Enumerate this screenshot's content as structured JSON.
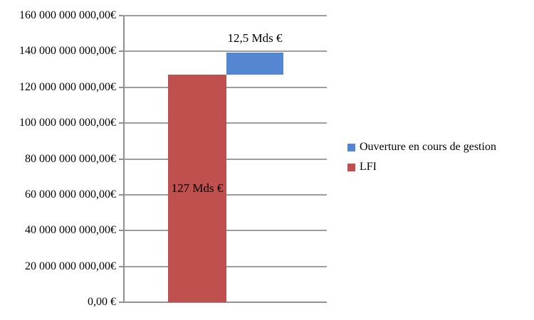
{
  "chart_data": {
    "type": "bar",
    "subtype": "stacked-waterfall",
    "title": "",
    "xlabel": "",
    "ylabel": "",
    "categories": [
      "LFI",
      "Ouverture en cours de gestion"
    ],
    "series": [
      {
        "name": "LFI",
        "value": 127000000000,
        "data_label": "127 Mds €",
        "color": "#C0504D",
        "label_position": "center"
      },
      {
        "name": "Ouverture en cours de gestion",
        "value": 12500000000,
        "data_label": "12,5 Mds €",
        "color": "#5486D1",
        "base": "LFI",
        "label_position": "above"
      }
    ],
    "ylim": [
      0,
      160000000000
    ],
    "y_ticks": [
      {
        "value": 160000000000,
        "label": "160 000 000 000,00€"
      },
      {
        "value": 140000000000,
        "label": "140 000 000 000,00€"
      },
      {
        "value": 120000000000,
        "label": "120 000 000 000,00€"
      },
      {
        "value": 100000000000,
        "label": "100 000 000 000,00€"
      },
      {
        "value": 80000000000,
        "label": "80 000 000 000,00€"
      },
      {
        "value": 60000000000,
        "label": "60 000 000 000,00€"
      },
      {
        "value": 40000000000,
        "label": "40 000 000 000,00€"
      },
      {
        "value": 20000000000,
        "label": "20 000 000 000,00€"
      },
      {
        "value": 0,
        "label": "0,00 €"
      }
    ],
    "grid": "horizontal",
    "legend_position": "right"
  },
  "legend": {
    "items": [
      {
        "label": "Ouverture en cours de gestion",
        "color": "#5486D1"
      },
      {
        "label": "LFI",
        "color": "#C0504D"
      }
    ]
  },
  "colors": {
    "axis": "#8F8F8F",
    "gridline": "#9D9D9D",
    "text": "#000000",
    "background": "#FFFFFF"
  }
}
